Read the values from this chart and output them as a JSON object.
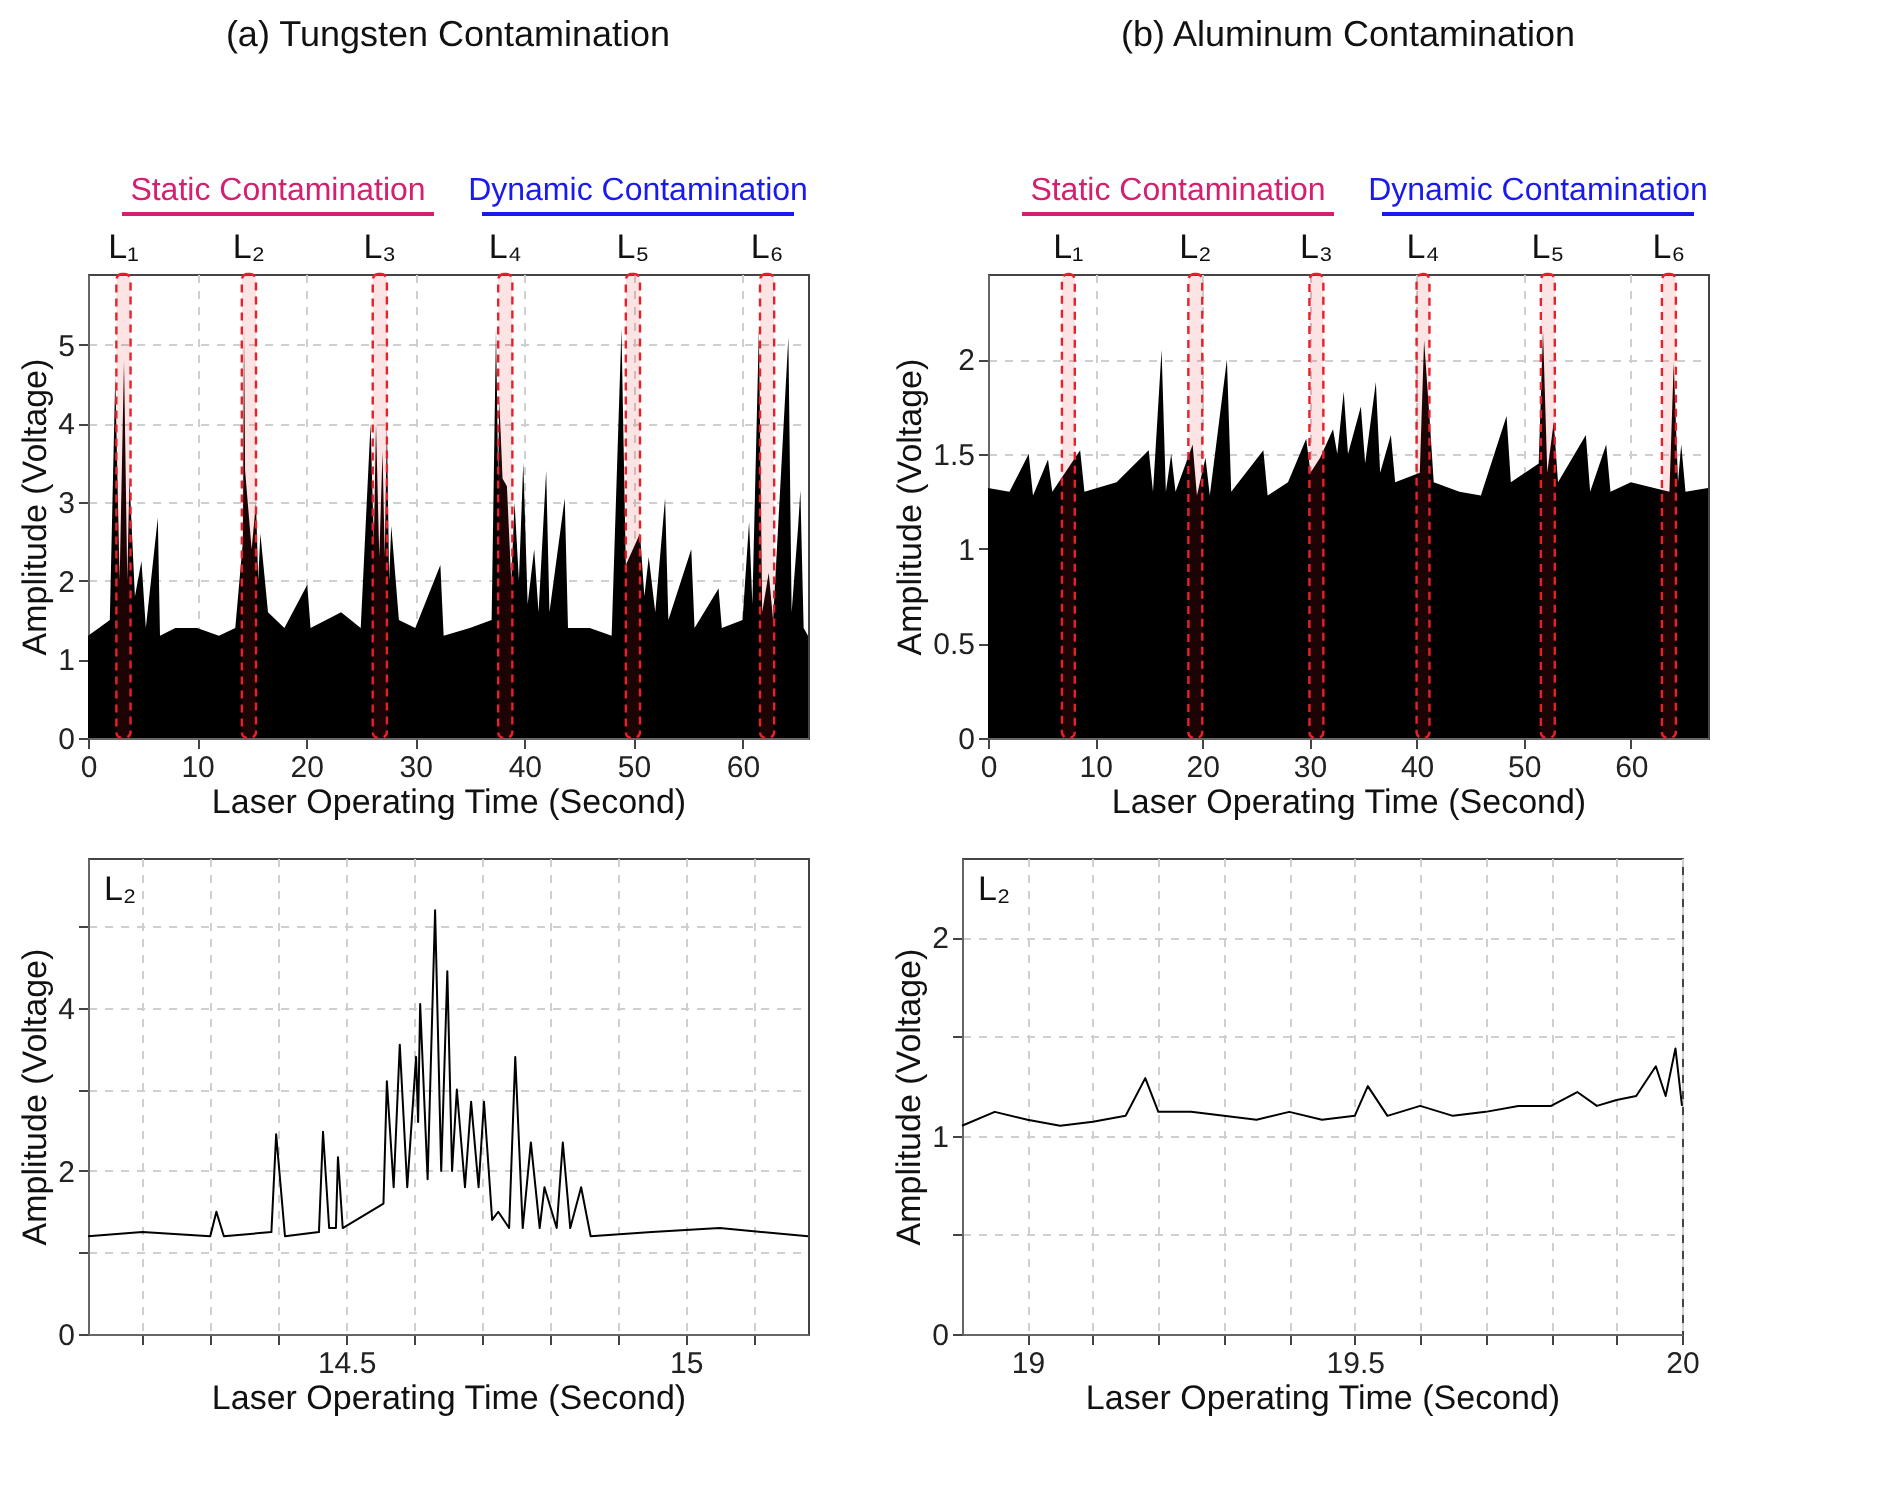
{
  "chart_data": [
    {
      "type": "area",
      "title": "(a) Tungsten Contamination",
      "xlabel": "Laser Operating Time (Second)",
      "ylabel": "Amplitude (Voltage)",
      "annotations": [
        "Static Contamination",
        "Dynamic Contamination"
      ],
      "x": [
        0,
        1,
        2,
        2.5,
        2.9,
        3.3,
        3.6,
        3.8,
        4.3,
        4.9,
        5.3,
        6.4,
        6.6,
        8,
        10,
        12,
        13.5,
        14.2,
        14.3,
        14.4,
        15,
        15.4,
        15.6,
        15.8,
        16.5,
        18,
        20.1,
        20.4,
        23.2,
        25,
        25.9,
        26.2,
        26.4,
        26.7,
        27,
        27.2,
        27.4,
        27.6,
        27.8,
        28.5,
        30,
        32.3,
        32.6,
        35,
        37,
        37.4,
        37.6,
        37.7,
        38,
        38.4,
        38.8,
        39.1,
        39.5,
        39.9,
        40.3,
        40.9,
        41.3,
        42,
        42.3,
        43.7,
        44,
        46,
        48,
        48.9,
        49.3,
        50.6,
        51,
        51.4,
        52,
        52.9,
        53.2,
        55.3,
        55.6,
        57.8,
        58.1,
        60,
        60.6,
        60.9,
        61.5,
        61.8,
        62.4,
        62.8,
        64.2,
        64.5,
        65.1,
        65.3,
        65.6,
        66
      ],
      "series": [
        {
          "color": "#000000",
          "values": [
            1.3,
            1.4,
            1.5,
            4.6,
            2.0,
            4.8,
            2.0,
            3.3,
            1.8,
            2.25,
            1.4,
            2.8,
            1.3,
            1.4,
            1.4,
            1.3,
            1.4,
            2.5,
            5.2,
            3.4,
            2.4,
            3.0,
            2.0,
            2.6,
            1.6,
            1.4,
            1.95,
            1.4,
            1.6,
            1.4,
            4.0,
            2.5,
            4.0,
            2.3,
            3.65,
            2.3,
            4.0,
            2.0,
            2.7,
            1.5,
            1.4,
            2.2,
            1.3,
            1.4,
            1.5,
            5.2,
            3.3,
            4.3,
            3.3,
            3.2,
            2.0,
            3.0,
            2.0,
            3.5,
            1.7,
            2.4,
            1.6,
            3.4,
            1.6,
            3.05,
            1.4,
            1.4,
            1.3,
            5.2,
            2.2,
            2.6,
            1.8,
            2.3,
            1.6,
            3.05,
            1.5,
            2.4,
            1.4,
            1.9,
            1.4,
            1.5,
            2.75,
            1.7,
            5.2,
            1.6,
            2.1,
            1.5,
            5.1,
            1.6,
            2.7,
            3.15,
            1.4,
            1.3
          ]
        }
      ],
      "bands": [
        {
          "axis": "x",
          "from": 2.6,
          "to": 3.9,
          "label": "L₁",
          "color": "#e8202a"
        },
        {
          "axis": "x",
          "from": 14.1,
          "to": 15.4,
          "label": "L₂",
          "color": "#e8202a"
        },
        {
          "axis": "x",
          "from": 26.1,
          "to": 27.4,
          "label": "L₃",
          "color": "#e8202a"
        },
        {
          "axis": "x",
          "from": 37.6,
          "to": 38.9,
          "label": "L₄",
          "color": "#e8202a"
        },
        {
          "axis": "x",
          "from": 49.3,
          "to": 50.6,
          "label": "L₅",
          "color": "#e8202a"
        },
        {
          "axis": "x",
          "from": 61.6,
          "to": 62.9,
          "label": "L₆",
          "color": "#e8202a"
        }
      ],
      "xlim": [
        0,
        66
      ],
      "xticks": [
        0,
        10,
        20,
        30,
        40,
        50,
        60
      ],
      "ylim": [
        0,
        5.9
      ],
      "yticks": [
        0,
        1,
        2,
        3,
        4,
        5
      ],
      "grid": true
    },
    {
      "type": "area",
      "title": "(b) Aluminum Contamination",
      "xlabel": "Laser Operating Time (Second)",
      "ylabel": "Amplitude (Voltage)",
      "annotations": [
        "Static Contamination",
        "Dynamic Contamination"
      ],
      "x": [
        0,
        2,
        3.8,
        4.2,
        5.6,
        6,
        8.6,
        9,
        12,
        15,
        15.4,
        16.2,
        16.6,
        17.1,
        17.5,
        19.1,
        19.5,
        20.3,
        20.7,
        22.3,
        22.7,
        25.7,
        26.1,
        28,
        29.7,
        30.1,
        31,
        32.2,
        32.6,
        33.2,
        33.6,
        34.8,
        35.2,
        36.2,
        36.6,
        37.6,
        38,
        40.3,
        40.7,
        41.2,
        41.6,
        44,
        46,
        48.4,
        48.8,
        51.4,
        51.8,
        52.2,
        52.8,
        53.2,
        55.8,
        56.2,
        57.7,
        58.1,
        60,
        63.6,
        64,
        64.4,
        64.7,
        65.1,
        67.2
      ],
      "series": [
        {
          "color": "#000000",
          "values": [
            1.32,
            1.3,
            1.5,
            1.28,
            1.47,
            1.3,
            1.52,
            1.3,
            1.35,
            1.52,
            1.3,
            2.05,
            1.3,
            1.5,
            1.3,
            1.55,
            1.28,
            1.48,
            1.28,
            2.0,
            1.3,
            1.52,
            1.28,
            1.35,
            1.58,
            1.4,
            1.48,
            1.63,
            1.5,
            1.83,
            1.5,
            1.75,
            1.45,
            1.88,
            1.4,
            1.6,
            1.35,
            1.4,
            2.1,
            1.7,
            1.35,
            1.3,
            1.28,
            1.7,
            1.35,
            1.45,
            2.15,
            1.4,
            1.67,
            1.35,
            1.6,
            1.3,
            1.55,
            1.3,
            1.35,
            1.3,
            1.98,
            1.35,
            1.55,
            1.3,
            1.32
          ]
        }
      ],
      "bands": [
        {
          "axis": "x",
          "from": 6.9,
          "to": 8.1,
          "label": "L₁",
          "color": "#e8202a"
        },
        {
          "axis": "x",
          "from": 18.7,
          "to": 20.0,
          "label": "L₂",
          "color": "#e8202a"
        },
        {
          "axis": "x",
          "from": 30.0,
          "to": 31.3,
          "label": "L₃",
          "color": "#e8202a"
        },
        {
          "axis": "x",
          "from": 40.0,
          "to": 41.2,
          "label": "L₄",
          "color": "#e8202a"
        },
        {
          "axis": "x",
          "from": 51.6,
          "to": 52.9,
          "label": "L₅",
          "color": "#e8202a"
        },
        {
          "axis": "x",
          "from": 62.9,
          "to": 64.2,
          "label": "L₆",
          "color": "#e8202a"
        }
      ],
      "xlim": [
        0,
        67.2
      ],
      "xticks": [
        0,
        10,
        20,
        30,
        40,
        50,
        60
      ],
      "ylim": [
        0,
        2.45
      ],
      "yticks": [
        0,
        0.5,
        1,
        1.5,
        2
      ],
      "grid": true
    },
    {
      "type": "line",
      "xlabel": "Laser Operating Time (Second)",
      "ylabel": "Amplitude (Voltage)",
      "annotations": [
        "L₂"
      ],
      "x": [
        14.12,
        14.2,
        14.3,
        14.309,
        14.32,
        14.39,
        14.397,
        14.41,
        14.46,
        14.466,
        14.475,
        14.485,
        14.488,
        14.495,
        14.555,
        14.56,
        14.57,
        14.579,
        14.59,
        14.603,
        14.606,
        14.609,
        14.62,
        14.631,
        14.64,
        14.649,
        14.656,
        14.663,
        14.675,
        14.684,
        14.695,
        14.703,
        14.715,
        14.724,
        14.74,
        14.749,
        14.76,
        14.772,
        14.785,
        14.792,
        14.81,
        14.819,
        14.83,
        14.846,
        14.86,
        14.95,
        15.05,
        15.18
      ],
      "series": [
        {
          "color": "#000000",
          "values": [
            1.2,
            1.25,
            1.2,
            1.5,
            1.2,
            1.25,
            2.45,
            1.2,
            1.25,
            2.48,
            1.3,
            1.3,
            2.17,
            1.3,
            1.6,
            3.1,
            1.8,
            3.55,
            1.8,
            3.4,
            2.6,
            4.05,
            1.9,
            5.2,
            2.0,
            4.45,
            2.0,
            3.0,
            1.8,
            2.85,
            1.8,
            2.85,
            1.4,
            1.5,
            1.3,
            3.4,
            1.3,
            2.35,
            1.3,
            1.8,
            1.3,
            2.35,
            1.3,
            1.8,
            1.2,
            1.25,
            1.3,
            1.2
          ]
        }
      ],
      "xlim": [
        14.12,
        15.18
      ],
      "xticks": [
        {
          "value": 14.2,
          "label": null
        },
        {
          "value": 14.3,
          "label": null
        },
        {
          "value": 14.4,
          "label": null
        },
        14.5,
        {
          "value": 14.6,
          "label": null
        },
        {
          "value": 14.7,
          "label": null
        },
        {
          "value": 14.8,
          "label": null
        },
        {
          "value": 14.9,
          "label": null
        },
        15,
        {
          "value": 15.1,
          "label": null
        }
      ],
      "ylim": [
        0,
        5.84
      ],
      "yticks": [
        0,
        {
          "value": 1,
          "label": null
        },
        2,
        {
          "value": 3,
          "label": null
        },
        4,
        {
          "value": 5,
          "label": null
        }
      ],
      "grid": true
    },
    {
      "type": "line",
      "xlabel": "Laser Operating Time (Second)",
      "ylabel": "Amplitude (Voltage)",
      "annotations": [
        "L₂"
      ],
      "x": [
        18.9,
        18.95,
        19.0,
        19.05,
        19.1,
        19.15,
        19.18,
        19.2,
        19.25,
        19.3,
        19.35,
        19.4,
        19.45,
        19.5,
        19.52,
        19.55,
        19.6,
        19.65,
        19.7,
        19.75,
        19.8,
        19.84,
        19.87,
        19.9,
        19.93,
        19.96,
        19.975,
        19.99,
        20.0
      ],
      "series": [
        {
          "color": "#000000",
          "values": [
            1.05,
            1.12,
            1.08,
            1.05,
            1.07,
            1.1,
            1.29,
            1.12,
            1.12,
            1.1,
            1.08,
            1.12,
            1.08,
            1.1,
            1.25,
            1.1,
            1.15,
            1.1,
            1.12,
            1.15,
            1.15,
            1.22,
            1.15,
            1.18,
            1.2,
            1.35,
            1.2,
            1.44,
            1.15
          ]
        }
      ],
      "xlim": [
        18.9,
        20.0
      ],
      "xticks": [
        19,
        {
          "value": 19.1,
          "label": null
        },
        {
          "value": 19.2,
          "label": null
        },
        {
          "value": 19.3,
          "label": null
        },
        {
          "value": 19.4,
          "label": null
        },
        19.5,
        {
          "value": 19.6,
          "label": null
        },
        {
          "value": 19.7,
          "label": null
        },
        {
          "value": 19.8,
          "label": null
        },
        {
          "value": 19.9,
          "label": null
        },
        20
      ],
      "ylim": [
        0,
        2.4
      ],
      "yticks": [
        0,
        {
          "value": 0.5,
          "label": null
        },
        1,
        {
          "value": 1.5,
          "label": null
        },
        2
      ],
      "grid": true
    }
  ]
}
